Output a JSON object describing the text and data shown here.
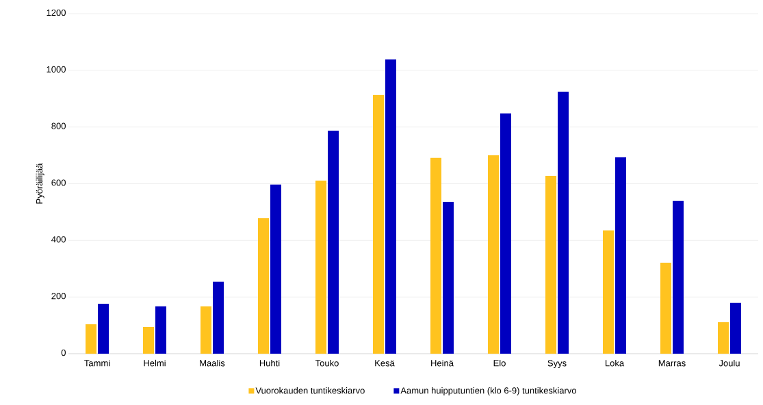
{
  "chart_data": {
    "type": "bar",
    "ylabel": "Pyöräilijää",
    "categories": [
      "Tammi",
      "Helmi",
      "Maalis",
      "Huhti",
      "Touko",
      "Kesä",
      "Heinä",
      "Elo",
      "Syys",
      "Loka",
      "Marras",
      "Joulu"
    ],
    "series": [
      {
        "name": "Vuorokauden tuntikeskiarvo",
        "color": "#ffc31f",
        "values": [
          104,
          94,
          167,
          478,
          611,
          913,
          691,
          700,
          628,
          435,
          321,
          111
        ]
      },
      {
        "name": "Aamun huipputuntien (klo 6-9) tuntikeskiarvo",
        "color": "#0000c0",
        "values": [
          176,
          167,
          254,
          597,
          787,
          1039,
          536,
          848,
          925,
          693,
          539,
          179
        ]
      }
    ],
    "ylim": [
      0,
      1200
    ],
    "yticks": [
      0,
      200,
      400,
      600,
      800,
      1000,
      1200
    ],
    "grid": "y",
    "legend": "bottom"
  }
}
